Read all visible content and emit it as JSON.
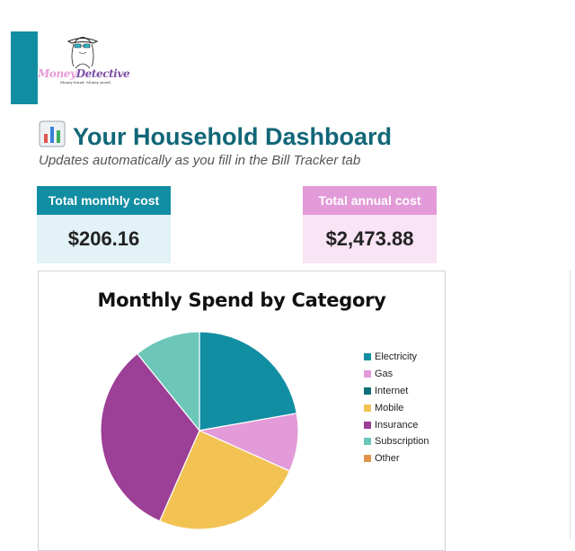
{
  "logo": {
    "text_money": "Money",
    "text_detective": "Detective",
    "tagline": "Money found. Money saved."
  },
  "header": {
    "title": "Your Household Dashboard",
    "emoji_icon": "bar-chart-icon",
    "subtitle": "Updates automatically as you fill in the Bill Tracker tab"
  },
  "cards": {
    "monthly": {
      "label": "Total monthly cost",
      "value": "$206.16"
    },
    "annual": {
      "label": "Total annual cost",
      "value": "$2,473.88"
    }
  },
  "colors": {
    "teal": "#128ea3",
    "pink": "#e29bd8",
    "title_teal": "#116677"
  },
  "chart_data": {
    "type": "pie",
    "title": "Monthly Spend by Category",
    "legend_position": "right",
    "categories": [
      "Electricity",
      "Gas",
      "Internet",
      "Mobile",
      "Insurance",
      "Subscription",
      "Other"
    ],
    "values": [
      45.8,
      19.6,
      0,
      51.3,
      67.2,
      22.3,
      0
    ],
    "colors": [
      "#128ea3",
      "#e29bd8",
      "#0f6e77",
      "#f2c353",
      "#9c3f96",
      "#6cc7b8",
      "#e0954a"
    ]
  }
}
